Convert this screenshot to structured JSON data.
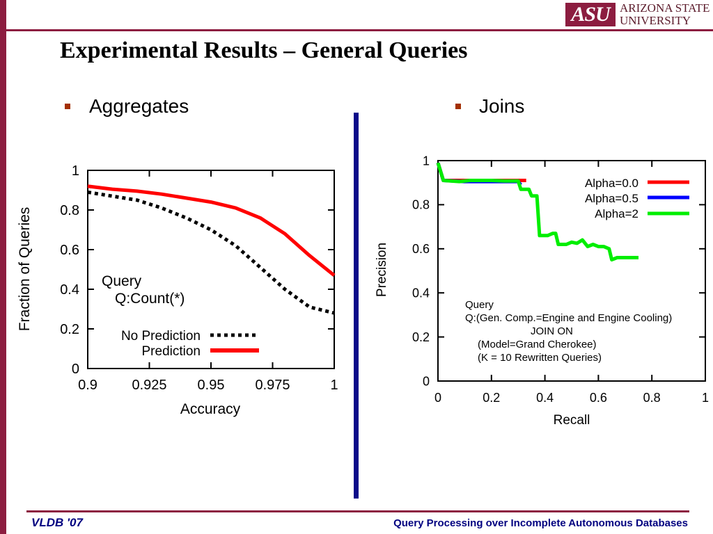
{
  "header": {
    "logo_mark": "ASU",
    "logo_line1": "ARIZONA STATE",
    "logo_line2": "UNIVERSITY",
    "title": "Experimental Results – General Queries"
  },
  "sections": {
    "left_label": "Aggregates",
    "right_label": "Joins"
  },
  "footer": {
    "left": "VLDB '07",
    "right": "Query Processing over Incomplete Autonomous Databases"
  },
  "colors": {
    "brand": "#8c1d40",
    "divider": "#0a0a8a",
    "footer_text": "#000080",
    "bullet": "#a33000"
  },
  "chart_data": [
    {
      "type": "line",
      "xlabel": "Accuracy",
      "ylabel": "Fraction of Queries",
      "xlim": [
        0.9,
        1
      ],
      "ylim": [
        0,
        1
      ],
      "x_ticks": [
        0.9,
        0.925,
        0.95,
        0.975,
        1
      ],
      "x_tick_labels": [
        "0.9",
        "0.925",
        "0.95",
        "0.975",
        "1"
      ],
      "y_ticks": [
        0,
        0.2,
        0.4,
        0.6,
        0.8,
        1
      ],
      "y_tick_labels": [
        "0",
        "0.2",
        "0.4",
        "0.6",
        "0.8",
        "1"
      ],
      "annotation": [
        "Query",
        "Q:Count(*)"
      ],
      "legend_position": "bottom-right",
      "grid": false,
      "series": [
        {
          "name": "No Prediction",
          "color": "#000000",
          "dash": "dotted",
          "points": [
            [
              0.9,
              0.89
            ],
            [
              0.91,
              0.87
            ],
            [
              0.92,
              0.85
            ],
            [
              0.93,
              0.81
            ],
            [
              0.94,
              0.76
            ],
            [
              0.95,
              0.7
            ],
            [
              0.96,
              0.62
            ],
            [
              0.97,
              0.51
            ],
            [
              0.98,
              0.4
            ],
            [
              0.99,
              0.31
            ],
            [
              1.0,
              0.28
            ]
          ]
        },
        {
          "name": "Prediction",
          "color": "#ff0000",
          "dash": "solid",
          "points": [
            [
              0.9,
              0.92
            ],
            [
              0.91,
              0.905
            ],
            [
              0.92,
              0.895
            ],
            [
              0.93,
              0.88
            ],
            [
              0.94,
              0.86
            ],
            [
              0.95,
              0.84
            ],
            [
              0.96,
              0.81
            ],
            [
              0.97,
              0.76
            ],
            [
              0.98,
              0.68
            ],
            [
              0.99,
              0.57
            ],
            [
              1.0,
              0.47
            ]
          ]
        }
      ]
    },
    {
      "type": "line",
      "xlabel": "Recall",
      "ylabel": "Precision",
      "xlim": [
        0,
        1
      ],
      "ylim": [
        0,
        1
      ],
      "x_ticks": [
        0,
        0.2,
        0.4,
        0.6,
        0.8,
        1
      ],
      "x_tick_labels": [
        "0",
        "0.2",
        "0.4",
        "0.6",
        "0.8",
        "1"
      ],
      "y_ticks": [
        0,
        0.2,
        0.4,
        0.6,
        0.8,
        1
      ],
      "y_tick_labels": [
        "0",
        "0.2",
        "0.4",
        "0.6",
        "0.8",
        "1"
      ],
      "annotation": [
        "Query",
        "Q:(Gen. Comp.=Engine and Engine Cooling)",
        "JOIN ON",
        "(Model=Grand Cherokee)",
        "(K = 10 Rewritten Queries)"
      ],
      "legend_position": "top-right",
      "grid": false,
      "series": [
        {
          "name": "Alpha=0.0",
          "color": "#ff0000",
          "points": [
            [
              0.0,
              0.99
            ],
            [
              0.02,
              0.91
            ],
            [
              0.1,
              0.91
            ],
            [
              0.2,
              0.91
            ],
            [
              0.33,
              0.91
            ]
          ]
        },
        {
          "name": "Alpha=0.5",
          "color": "#0000ff",
          "points": [
            [
              0.0,
              0.99
            ],
            [
              0.02,
              0.91
            ],
            [
              0.1,
              0.905
            ],
            [
              0.3,
              0.905
            ],
            [
              0.31,
              0.89
            ]
          ]
        },
        {
          "name": "Alpha=2",
          "color": "#00ee00",
          "points": [
            [
              0.0,
              0.99
            ],
            [
              0.02,
              0.91
            ],
            [
              0.08,
              0.905
            ],
            [
              0.12,
              0.91
            ],
            [
              0.2,
              0.91
            ],
            [
              0.25,
              0.908
            ],
            [
              0.3,
              0.908
            ],
            [
              0.31,
              0.87
            ],
            [
              0.34,
              0.87
            ],
            [
              0.35,
              0.84
            ],
            [
              0.37,
              0.84
            ],
            [
              0.38,
              0.66
            ],
            [
              0.41,
              0.66
            ],
            [
              0.43,
              0.67
            ],
            [
              0.44,
              0.67
            ],
            [
              0.45,
              0.62
            ],
            [
              0.48,
              0.62
            ],
            [
              0.5,
              0.63
            ],
            [
              0.52,
              0.625
            ],
            [
              0.54,
              0.64
            ],
            [
              0.56,
              0.61
            ],
            [
              0.58,
              0.62
            ],
            [
              0.6,
              0.61
            ],
            [
              0.62,
              0.61
            ],
            [
              0.64,
              0.6
            ],
            [
              0.65,
              0.55
            ],
            [
              0.67,
              0.56
            ],
            [
              0.7,
              0.56
            ],
            [
              0.72,
              0.56
            ],
            [
              0.75,
              0.56
            ]
          ]
        }
      ]
    }
  ]
}
